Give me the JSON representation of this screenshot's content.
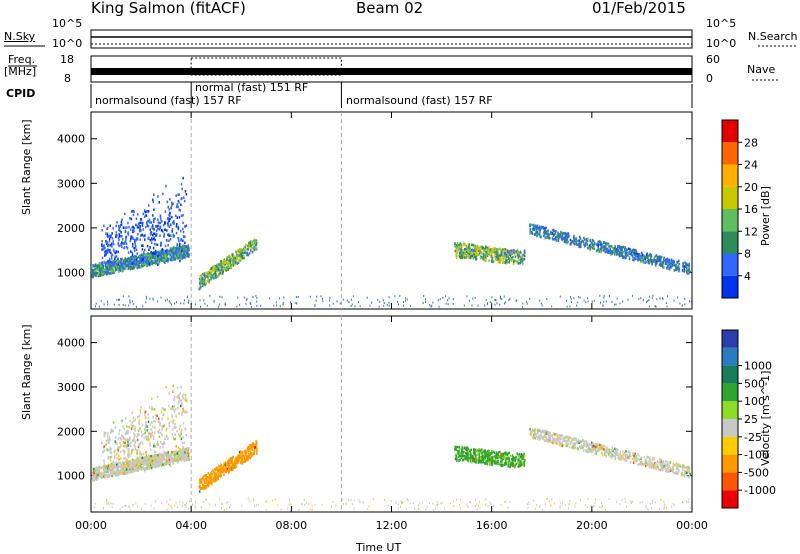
{
  "header": {
    "station": "King Salmon (fitACF)",
    "beam": "Beam 02",
    "date": "01/Feb/2015"
  },
  "top_panel": {
    "left_label": "N.Sky",
    "right_label": "N.Search",
    "left_ticks": [
      "10^5",
      "10^0"
    ],
    "right_ticks": [
      "10^5",
      "10^0"
    ],
    "freq_label": "Freq.",
    "freq_unit": "[MHz]",
    "freq_ticks": [
      "18",
      "8"
    ],
    "nave_label": "Nave",
    "nave_ticks": [
      "60",
      "0"
    ],
    "cpid_label": "CPID",
    "cpid_segments": [
      {
        "label": "normalsound (fast) 157 RF",
        "start_h": 0,
        "end_h": 4.0
      },
      {
        "label": "normal (fast) 151 RF",
        "start_h": 4.0,
        "end_h": 10.0
      },
      {
        "label": "normalsound (fast) 157 RF",
        "start_h": 10.0,
        "end_h": 24.0
      }
    ]
  },
  "colors": {
    "power": [
      "#0033ee",
      "#3366ff",
      "#2e8b57",
      "#5fbf5f",
      "#c8c800",
      "#ffb000",
      "#ff6600",
      "#e40000"
    ],
    "velocity": [
      "#ee0000",
      "#ff5500",
      "#ff9900",
      "#ffcc00",
      "#c8c8c8",
      "#8edc2a",
      "#2fa52f",
      "#1a7b5a",
      "#2b7bbf",
      "#2a3fa8"
    ],
    "gridline": "#aaaaaa"
  },
  "chart_data": [
    {
      "type": "heatmap",
      "title": "Power",
      "xlabel": "Time UT",
      "ylabel": "Slant Range [km]",
      "xlim": [
        0,
        24
      ],
      "ylim": [
        180,
        4600
      ],
      "yticks": [
        1000,
        2000,
        3000,
        4000
      ],
      "colorbar": {
        "label": "Power [dB]",
        "ticks": [
          "4",
          "8",
          "12",
          "16",
          "20",
          "24",
          "28"
        ],
        "range": [
          0,
          32
        ]
      },
      "regions": [
        {
          "name": "early echo band",
          "t0": 0.0,
          "t1": 3.9,
          "range_center_km": [
            950,
            1550
          ],
          "power_db": 12
        },
        {
          "name": "early high-range streaks",
          "t0": 0.5,
          "t1": 3.8,
          "range_center_km": [
            1400,
            3100
          ],
          "power_db": 6
        },
        {
          "name": "post-04 arc",
          "t0": 4.3,
          "t1": 6.6,
          "range_center_km": [
            750,
            1650
          ],
          "power_db": 16
        },
        {
          "name": "afternoon cluster",
          "t0": 14.5,
          "t1": 17.3,
          "range_center_km": [
            1350,
            1550
          ],
          "power_db": 18
        },
        {
          "name": "evening band",
          "t0": 17.5,
          "t1": 23.9,
          "range_center_km": [
            2000,
            1150
          ],
          "power_db": 10
        }
      ]
    },
    {
      "type": "heatmap",
      "title": "Velocity",
      "xlabel": "Time UT",
      "ylabel": "Slant Range [km]",
      "xlim": [
        0,
        24
      ],
      "ylim": [
        180,
        4600
      ],
      "yticks": [
        1000,
        2000,
        3000,
        4000
      ],
      "xticks": [
        "00:00",
        "04:00",
        "08:00",
        "12:00",
        "16:00",
        "20:00",
        "00:00"
      ],
      "colorbar": {
        "label": "Velocity [m s^-1]",
        "ticks": [
          "-1000",
          "-500",
          "-100",
          "-25",
          "25",
          "100",
          "500",
          "1000"
        ]
      },
      "regions": [
        {
          "name": "early echo band",
          "t0": 0.0,
          "t1": 3.9,
          "velocity_ms": 0
        },
        {
          "name": "post-04 arc",
          "t0": 4.3,
          "t1": 6.6,
          "velocity_ms": -150
        },
        {
          "name": "afternoon cluster",
          "t0": 14.5,
          "t1": 17.3,
          "velocity_ms": 120
        },
        {
          "name": "evening band",
          "t0": 17.5,
          "t1": 23.9,
          "velocity_ms": 0
        }
      ]
    }
  ]
}
